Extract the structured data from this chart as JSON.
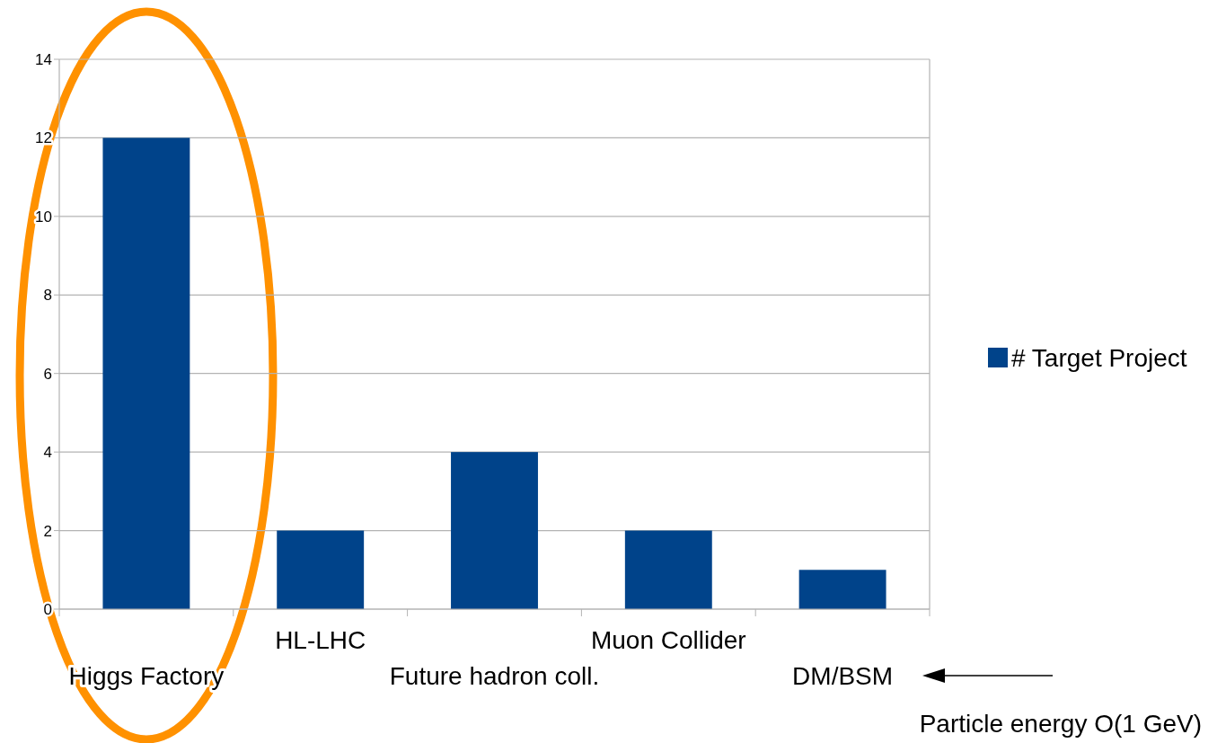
{
  "chart_data": {
    "type": "bar",
    "categories": [
      "Higgs Factory",
      "HL-LHC",
      "Future hadron coll.",
      "Muon Collider",
      "DM/BSM"
    ],
    "series": [
      {
        "name": "# Target Project",
        "color": "#00438a",
        "values": [
          12,
          2,
          4,
          2,
          1
        ]
      }
    ],
    "ylim": [
      0,
      14
    ],
    "yticks": [
      0,
      2,
      4,
      6,
      8,
      10,
      12,
      14
    ],
    "grid": "y",
    "legend": "right",
    "annotations": [
      "Particle energy O(1 GeV)"
    ]
  }
}
